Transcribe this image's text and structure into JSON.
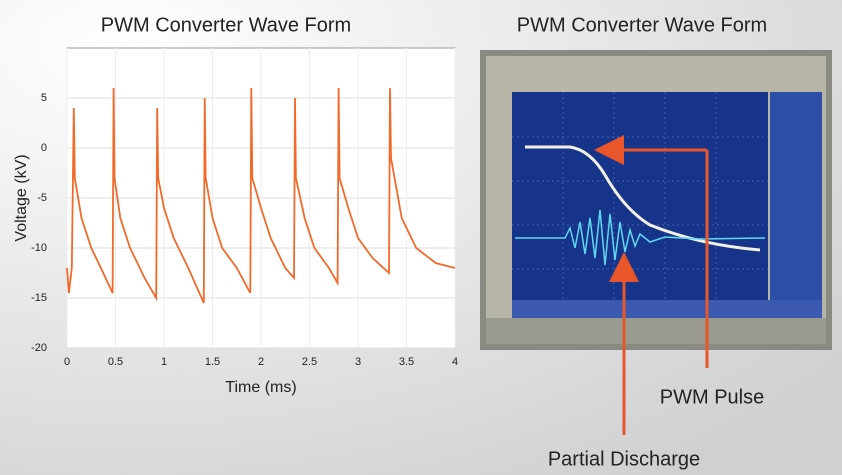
{
  "chart_data": {
    "type": "line",
    "title": "PWM Converter Wave Form",
    "x_label": "Time (ms)",
    "y_label": "Voltage (kV)",
    "x": [
      0,
      0.02,
      0.05,
      0.07,
      0.08,
      0.15,
      0.25,
      0.35,
      0.47,
      0.48,
      0.49,
      0.55,
      0.65,
      0.8,
      0.92,
      0.93,
      0.94,
      1.0,
      1.1,
      1.25,
      1.41,
      1.42,
      1.43,
      1.5,
      1.6,
      1.75,
      1.89,
      1.9,
      1.91,
      2.0,
      2.1,
      2.25,
      2.34,
      2.35,
      2.36,
      2.45,
      2.55,
      2.7,
      2.79,
      2.8,
      2.81,
      2.9,
      3.0,
      3.15,
      3.32,
      3.33,
      3.34,
      3.45,
      3.6,
      3.8,
      4.0
    ],
    "series": [
      {
        "color": "#f26a2a",
        "values": [
          -12,
          -14.5,
          -12,
          4,
          -3,
          -7,
          -10,
          -12,
          -14.5,
          6,
          -3,
          -7,
          -10,
          -13,
          -15,
          4,
          -3,
          -6,
          -9,
          -12,
          -15.5,
          5,
          -3,
          -7,
          -10,
          -12,
          -14.5,
          6,
          -3,
          -6,
          -9,
          -12,
          -13,
          5,
          -3,
          -7,
          -10,
          -12,
          -13.5,
          6,
          -3,
          -6,
          -9,
          -11,
          -12.5,
          6,
          -1,
          -7,
          -10,
          -11.5,
          -12
        ]
      }
    ],
    "xlim": [
      0,
      4
    ],
    "xticks": [
      0,
      0.5,
      1,
      1.5,
      2,
      2.5,
      3,
      3.5,
      4
    ],
    "ylim": [
      -20,
      10
    ],
    "yticks": [
      -20,
      -15,
      -10,
      -5,
      0,
      5
    ],
    "grid": true
  },
  "photo": {
    "title": "PWM Converter Wave Form",
    "annotations": [
      "PWM Pulse",
      "Partial Discharge"
    ]
  }
}
